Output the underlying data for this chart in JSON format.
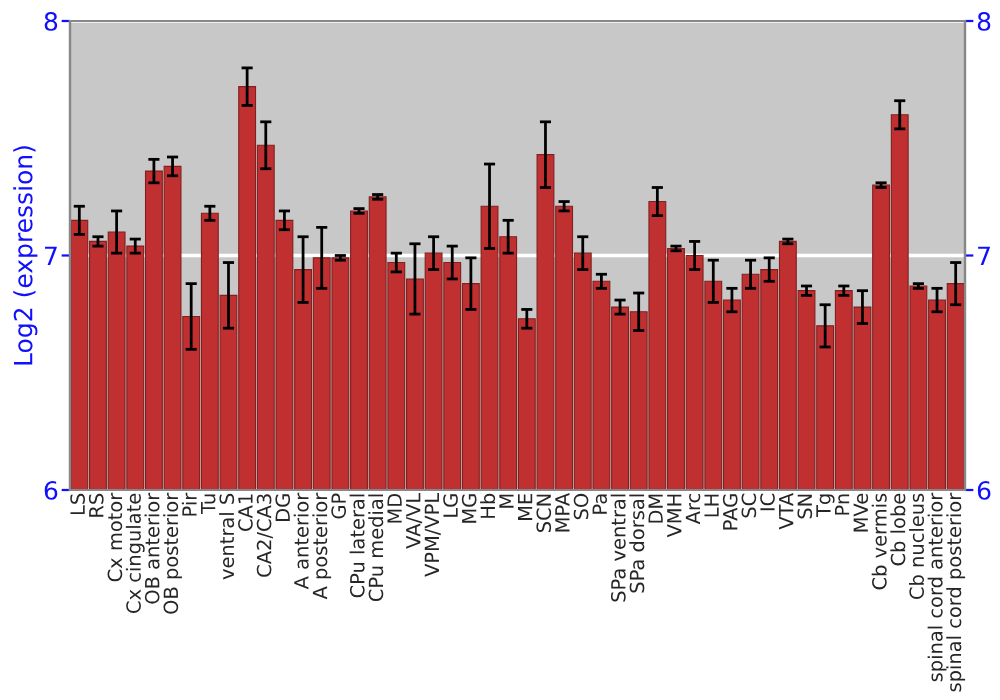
{
  "chart_data": {
    "type": "bar",
    "ylabel": "Log2 (expression)",
    "categories": [
      "LS",
      "RS",
      "Cx motor",
      "Cx cingulate",
      "OB anterior",
      "OB posterior",
      "Pir",
      "Tu",
      "ventral S",
      "CA1",
      "CA2/CA3",
      "DG",
      "A anterior",
      "A posterior",
      "GP",
      "CPu lateral",
      "CPu medial",
      "MD",
      "VA/VL",
      "VPM/VPL",
      "LG",
      "MG",
      "Hb",
      "M",
      "ME",
      "SCN",
      "MPA",
      "SO",
      "Pa",
      "SPa ventral",
      "SPa dorsal",
      "DM",
      "VMH",
      "Arc",
      "LH",
      "PAG",
      "SC",
      "IC",
      "VTA",
      "SN",
      "Tg",
      "Pn",
      "MVe",
      "Cb vermis",
      "Cb lobe",
      "Cb nucleus",
      "spinal cord anterior",
      "spinal cord posterior"
    ],
    "values": [
      7.15,
      7.06,
      7.1,
      7.04,
      7.36,
      7.38,
      6.74,
      7.18,
      6.83,
      7.72,
      7.47,
      7.15,
      6.94,
      6.99,
      6.99,
      7.19,
      7.25,
      6.97,
      6.9,
      7.01,
      6.97,
      6.88,
      7.21,
      7.08,
      6.73,
      7.43,
      7.21,
      7.01,
      6.89,
      6.78,
      6.76,
      7.23,
      7.03,
      7.0,
      6.89,
      6.81,
      6.92,
      6.94,
      7.06,
      6.85,
      6.7,
      6.85,
      6.78,
      7.3,
      7.6,
      6.87,
      6.81,
      6.88
    ],
    "errors": [
      0.06,
      0.02,
      0.09,
      0.03,
      0.05,
      0.04,
      0.14,
      0.03,
      0.14,
      0.08,
      0.1,
      0.04,
      0.14,
      0.13,
      0.01,
      0.01,
      0.01,
      0.04,
      0.15,
      0.07,
      0.07,
      0.11,
      0.18,
      0.07,
      0.04,
      0.14,
      0.02,
      0.07,
      0.03,
      0.03,
      0.08,
      0.06,
      0.01,
      0.06,
      0.09,
      0.05,
      0.06,
      0.05,
      0.01,
      0.02,
      0.09,
      0.02,
      0.07,
      0.01,
      0.06,
      0.01,
      0.05,
      0.09
    ],
    "color": "#c03030",
    "ylim": [
      6,
      8
    ],
    "yticks": [
      6,
      7,
      8
    ],
    "y2lim": [
      6,
      8
    ],
    "y2ticks": [
      6,
      7,
      8
    ],
    "grid": "y"
  }
}
